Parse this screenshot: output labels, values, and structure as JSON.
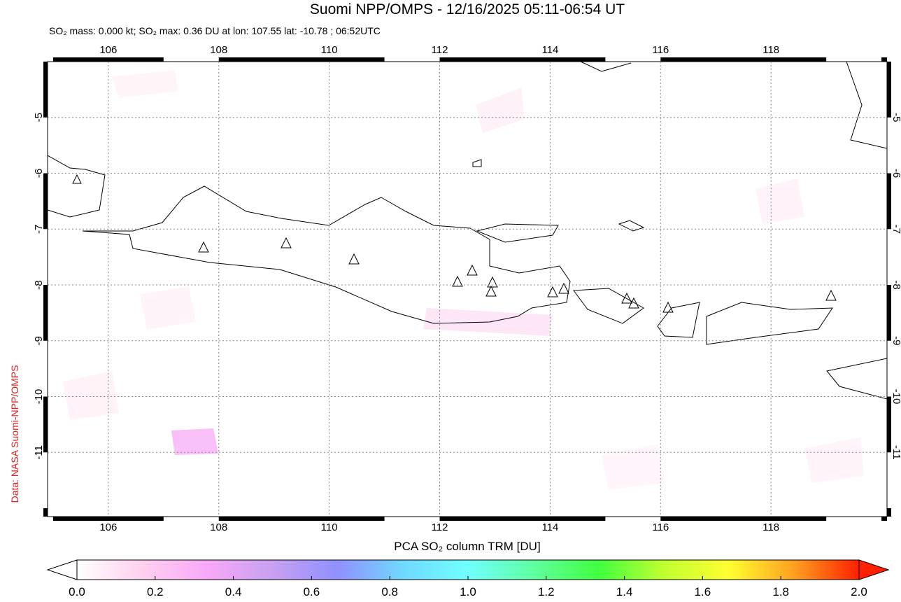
{
  "chart_data": {
    "type": "map",
    "title": "Suomi NPP/OMPS - 12/16/2025 05:11-06:54 UT",
    "subtitle": "SO₂ mass: 0.000 kt; SO₂ max: 0.36 DU at lon: 107.55 lat: -10.78 ; 06:52UTC",
    "credit": "Data: NASA Suomi-NPP/OMPS",
    "xlim": [
      104.9,
      120.1
    ],
    "xticks": [
      106,
      108,
      110,
      112,
      114,
      116,
      118
    ],
    "ylim": [
      -12.15,
      -4
    ],
    "yticks": [
      -5,
      -6,
      -7,
      -8,
      -9,
      -10,
      -11
    ],
    "grid": true,
    "colorbar": {
      "label": "PCA SO₂ column TRM [DU]",
      "lim": [
        0,
        2
      ],
      "ticks": [
        {
          "value": 0,
          "label": "0.0"
        },
        0.2,
        0.4,
        0.6,
        0.8,
        {
          "value": 1,
          "label": "1.0"
        },
        1.2,
        1.4,
        1.6,
        1.8,
        {
          "value": 2,
          "label": "2.0"
        }
      ],
      "colors": [
        "#ffffff",
        "#ffd0f0",
        "#f8a8f8",
        "#c8a0f0",
        "#9090ff",
        "#70d8ff",
        "#70ffff",
        "#60ffa0",
        "#40ff40",
        "#c0ff30",
        "#ffff30",
        "#ffa020",
        "#ff2000"
      ]
    }
  }
}
